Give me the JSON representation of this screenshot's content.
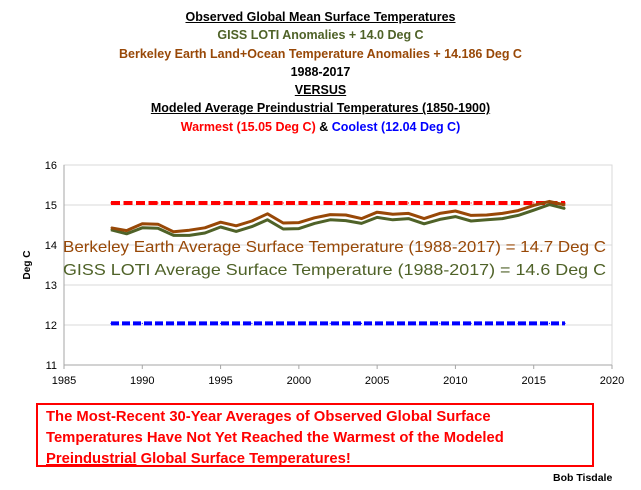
{
  "header": {
    "title": "Observed Global Mean Surface Temperatures",
    "line2": "GISS LOTI Anomalies + 14.0 Deg C",
    "line3": "Berkeley Earth Land+Ocean Temperature Anomalies + 14.186 Deg C",
    "line4": "1988-2017",
    "line5": "VERSUS",
    "line6": "Modeled Average Preindustrial Temperatures (1850-1900)",
    "warmest": "Warmest (15.05 Deg C)",
    "amp": "&",
    "coolest": "Coolest (12.04 Deg C)"
  },
  "colors": {
    "berkeley": "#984807",
    "giss": "#4f6228",
    "warmest": "#ff0000",
    "coolest": "#0000ff"
  },
  "chart_data": {
    "type": "line",
    "ylabel": "Deg C",
    "xlabel": "",
    "xlim": [
      1985,
      2020
    ],
    "ylim": [
      11,
      16
    ],
    "xticks": [
      1985,
      1990,
      1995,
      2000,
      2005,
      2010,
      2015,
      2020
    ],
    "yticks": [
      11,
      12,
      13,
      14,
      15,
      16
    ],
    "grid": "horizontal",
    "x": [
      1988,
      1989,
      1990,
      1991,
      1992,
      1993,
      1994,
      1995,
      1996,
      1997,
      1998,
      1999,
      2000,
      2001,
      2002,
      2003,
      2004,
      2005,
      2006,
      2007,
      2008,
      2009,
      2010,
      2011,
      2012,
      2013,
      2014,
      2015,
      2016,
      2017
    ],
    "series": [
      {
        "key": "berkeley",
        "values": [
          14.43,
          14.36,
          14.53,
          14.52,
          14.33,
          14.37,
          14.43,
          14.57,
          14.48,
          14.6,
          14.78,
          14.55,
          14.56,
          14.68,
          14.76,
          14.75,
          14.66,
          14.82,
          14.77,
          14.79,
          14.66,
          14.79,
          14.85,
          14.74,
          14.75,
          14.79,
          14.86,
          14.99,
          15.09,
          15.0
        ]
      },
      {
        "key": "giss",
        "values": [
          14.38,
          14.28,
          14.43,
          14.42,
          14.24,
          14.24,
          14.3,
          14.45,
          14.34,
          14.46,
          14.63,
          14.4,
          14.41,
          14.54,
          14.63,
          14.61,
          14.54,
          14.69,
          14.63,
          14.66,
          14.53,
          14.64,
          14.71,
          14.6,
          14.63,
          14.66,
          14.74,
          14.87,
          15.01,
          14.91
        ]
      },
      {
        "key": "warmest",
        "values": [
          15.05,
          15.05,
          15.05,
          15.05,
          15.05,
          15.05,
          15.05,
          15.05,
          15.05,
          15.05,
          15.05,
          15.05,
          15.05,
          15.05,
          15.05,
          15.05,
          15.05,
          15.05,
          15.05,
          15.05,
          15.05,
          15.05,
          15.05,
          15.05,
          15.05,
          15.05,
          15.05,
          15.05,
          15.05,
          15.05
        ]
      },
      {
        "key": "coolest",
        "values": [
          12.04,
          12.04,
          12.04,
          12.04,
          12.04,
          12.04,
          12.04,
          12.04,
          12.04,
          12.04,
          12.04,
          12.04,
          12.04,
          12.04,
          12.04,
          12.04,
          12.04,
          12.04,
          12.04,
          12.04,
          12.04,
          12.04,
          12.04,
          12.04,
          12.04,
          12.04,
          12.04,
          12.04,
          12.04,
          12.04
        ]
      }
    ],
    "annotations": [
      {
        "key": "berkeley",
        "text": "Berkeley Earth Average Surface Temperature (1988-2017) = 14.7 Deg C"
      },
      {
        "key": "giss",
        "text": "GISS LOTI Average Surface Temperature (1988-2017) = 14.6 Deg C"
      }
    ]
  },
  "callout": {
    "line1": "The Most-Recent 30-Year Averages of Observed Global Surface",
    "line2": "Temperatures Have Not Yet Reached the Warmest of the Modeled",
    "line3_underlined": "Preindustrial",
    "line3_rest": " Global Surface Temperatures!"
  },
  "signature": "Bob Tisdale"
}
